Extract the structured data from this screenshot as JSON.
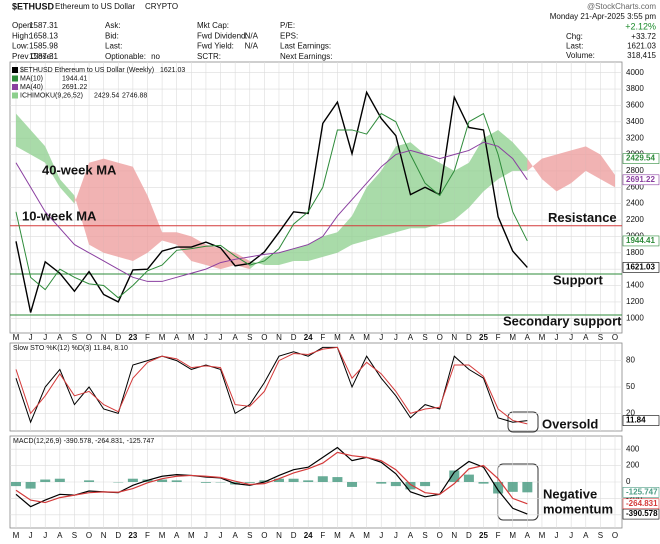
{
  "header": {
    "symbol": "$ETHUSD",
    "name": "Ethereum to US Dollar",
    "exchange": "CRYPTO",
    "brand": "@StockCharts.com",
    "date": "Monday 21-Apr-2025 3:55 pm",
    "pct_change": "+2.12%",
    "columns": [
      [
        {
          "label": "Open:",
          "value": "1587.31"
        },
        {
          "label": "High:",
          "value": "1658.13"
        },
        {
          "label": "Low:",
          "value": "1585.98"
        },
        {
          "label": "Prev Close:",
          "value": "1587.31"
        }
      ],
      [
        {
          "label": "Ask:"
        },
        {
          "label": "Bid:"
        },
        {
          "label": "Last:"
        },
        {
          "label": "Optionable:",
          "value": "no"
        }
      ],
      [
        {
          "label": "Mkt Cap:"
        },
        {
          "label": "Fwd Dividend:",
          "value": "N/A"
        },
        {
          "label": "Fwd Yield:",
          "value": "N/A"
        },
        {
          "label": "SCTR:"
        }
      ],
      [
        {
          "label": "P/E:"
        },
        {
          "label": "EPS:"
        },
        {
          "label": "Last Earnings:"
        },
        {
          "label": "Next Earnings:"
        }
      ]
    ],
    "quote": [
      {
        "label": "Chg:",
        "value": "+33.72"
      },
      {
        "label": "Last:",
        "value": "1621.03"
      },
      {
        "label": "Volume:",
        "value": "318,415"
      }
    ]
  },
  "chart_data": [
    {
      "type": "price",
      "categories": [
        "M",
        "J",
        "J",
        "A",
        "S",
        "O",
        "N",
        "D",
        "23",
        "F",
        "M",
        "A",
        "M",
        "J",
        "J",
        "A",
        "S",
        "O",
        "N",
        "D",
        "24",
        "F",
        "M",
        "A",
        "M",
        "J",
        "J",
        "A",
        "S",
        "O",
        "N",
        "D",
        "25",
        "F",
        "M",
        "A",
        "M",
        "J",
        "J",
        "A",
        "S",
        "O"
      ],
      "ylim": [
        820,
        4130
      ],
      "yticks": [
        1000,
        1200,
        1400,
        1600,
        1800,
        2000,
        2200,
        2400,
        2600,
        2800,
        3000,
        3200,
        3400,
        3600,
        3800,
        4000
      ],
      "grid": true,
      "series": [
        {
          "name": "$ETHUSD Ethereum to US Dollar (Weekly)",
          "last_label": "1621.03",
          "color": "#000000",
          "values": [
            1940,
            1070,
            1690,
            1550,
            1330,
            1570,
            1290,
            1200,
            1590,
            1600,
            1820,
            1870,
            1870,
            1930,
            1860,
            1640,
            1670,
            1810,
            2050,
            2300,
            2280,
            3380,
            3640,
            3010,
            3760,
            3440,
            3230,
            2510,
            2600,
            2510,
            3700,
            3330,
            3300,
            2240,
            1820,
            1621.03,
            null,
            null,
            null,
            null,
            null,
            null
          ]
        },
        {
          "name": "MA(10)",
          "last_label": "1944.41",
          "color": "#2e8b3a",
          "values": [
            2300,
            1500,
            1350,
            1600,
            1500,
            1420,
            1400,
            1250,
            1400,
            1580,
            1650,
            1830,
            1850,
            1880,
            1890,
            1760,
            1650,
            1700,
            1850,
            2150,
            2300,
            2600,
            3300,
            3300,
            3250,
            3500,
            3400,
            3000,
            2650,
            2500,
            2800,
            3400,
            3500,
            3000,
            2300,
            1944.41,
            null,
            null,
            null,
            null,
            null,
            null
          ]
        },
        {
          "name": "MA(40)",
          "last_label": "2691.22",
          "color": "#8a3fa0",
          "values": [
            2900,
            2600,
            2300,
            2100,
            1900,
            1800,
            1700,
            1600,
            1500,
            1450,
            1450,
            1500,
            1550,
            1600,
            1680,
            1720,
            1750,
            1780,
            1800,
            1850,
            1900,
            2000,
            2250,
            2450,
            2650,
            2850,
            3000,
            3050,
            3000,
            2950,
            3000,
            3050,
            3150,
            3100,
            2950,
            2691.22,
            null,
            null,
            null,
            null,
            null,
            null
          ]
        }
      ],
      "cloud": {
        "name": "ICHIMOKU(9,26,52)",
        "last_labels": [
          "2429.54",
          "2746.88"
        ],
        "colors": [
          "#8ccf8c",
          "#ec9a9a"
        ],
        "span_a": [
          3500,
          3300,
          3100,
          2700,
          2500,
          1900,
          1800,
          1750,
          1700,
          1800,
          1950,
          1900,
          1700,
          1650,
          1600,
          1650,
          1600,
          1750,
          1800,
          1850,
          1900,
          2000,
          2050,
          2250,
          2600,
          2800,
          3100,
          3150,
          3000,
          2900,
          2800,
          2900,
          3200,
          3300,
          3150,
          2950,
          2700,
          2550,
          2650,
          2800,
          2700,
          2600
        ],
        "span_b": [
          3100,
          3000,
          2900,
          2600,
          2400,
          2900,
          2950,
          2900,
          2850,
          2500,
          2050,
          2050,
          2000,
          1900,
          1850,
          1800,
          1700,
          1650,
          1650,
          1700,
          1700,
          1750,
          1800,
          1900,
          1950,
          2000,
          2050,
          2100,
          2100,
          2150,
          2200,
          2350,
          2550,
          2700,
          2800,
          2800,
          2950,
          3000,
          3050,
          3100,
          3000,
          2750
        ]
      },
      "levels": [
        {
          "name": "Resistance",
          "value": 2130,
          "color": "#d43a3a"
        },
        {
          "name": "Support",
          "value": 1540,
          "color": "#2e8b3a"
        },
        {
          "name": "Secondary support",
          "value": 1040,
          "color": "#2e8b3a"
        }
      ],
      "annotations": [
        "40-week MA",
        "10-week MA"
      ]
    },
    {
      "type": "stoch",
      "legend": "Slow STO %K(12) %D(3) 11.84, 8.10",
      "ylim": [
        0,
        100
      ],
      "yticks": [
        20,
        50,
        80
      ],
      "series": [
        {
          "color": "#000000",
          "last_label": "11.84",
          "values": [
            60,
            10,
            50,
            70,
            30,
            50,
            25,
            20,
            75,
            80,
            85,
            80,
            70,
            75,
            70,
            20,
            30,
            55,
            85,
            90,
            85,
            95,
            95,
            50,
            85,
            60,
            40,
            15,
            30,
            25,
            85,
            70,
            60,
            15,
            10,
            11.84
          ]
        },
        {
          "color": "#d43a3a",
          "values": [
            70,
            20,
            40,
            65,
            40,
            45,
            30,
            22,
            60,
            78,
            85,
            82,
            72,
            74,
            72,
            30,
            28,
            45,
            80,
            88,
            87,
            93,
            95,
            60,
            78,
            65,
            45,
            20,
            25,
            27,
            75,
            75,
            62,
            25,
            12,
            8.1
          ]
        }
      ],
      "annotation": "Oversold"
    },
    {
      "type": "macd",
      "legend": "MACD(12,26,9) -390.578, -264.831, -125.747",
      "ylim": [
        -560,
        560
      ],
      "yticks": [
        -400,
        -200,
        0,
        200,
        400
      ],
      "series": [
        {
          "kind": "line",
          "color": "#000000",
          "last_label": "-390.578",
          "values": [
            -150,
            -300,
            -220,
            -150,
            -160,
            -110,
            -120,
            -130,
            -40,
            20,
            70,
            90,
            80,
            60,
            50,
            -20,
            -40,
            0,
            80,
            150,
            180,
            300,
            420,
            260,
            300,
            240,
            100,
            -120,
            -180,
            -150,
            120,
            250,
            180,
            -100,
            -320,
            -390.578
          ]
        },
        {
          "kind": "line",
          "color": "#d43a3a",
          "last_label": "-264.831",
          "values": [
            -100,
            -220,
            -250,
            -190,
            -160,
            -130,
            -120,
            -125,
            -80,
            -10,
            40,
            70,
            80,
            70,
            55,
            10,
            -30,
            -20,
            40,
            110,
            160,
            230,
            360,
            320,
            300,
            260,
            150,
            -30,
            -130,
            -150,
            -20,
            160,
            200,
            40,
            -200,
            -264.831
          ]
        },
        {
          "kind": "bar",
          "color": "#4d9e85",
          "last_label": "-125.747",
          "values": [
            -50,
            -80,
            30,
            40,
            0,
            20,
            0,
            -5,
            40,
            30,
            30,
            20,
            0,
            -10,
            -5,
            -30,
            -10,
            20,
            40,
            40,
            20,
            70,
            60,
            -60,
            0,
            -20,
            -50,
            -90,
            -50,
            0,
            140,
            90,
            -20,
            -140,
            -120,
            -125.747
          ]
        }
      ],
      "annotation": [
        "Negative",
        "momentum"
      ]
    }
  ]
}
